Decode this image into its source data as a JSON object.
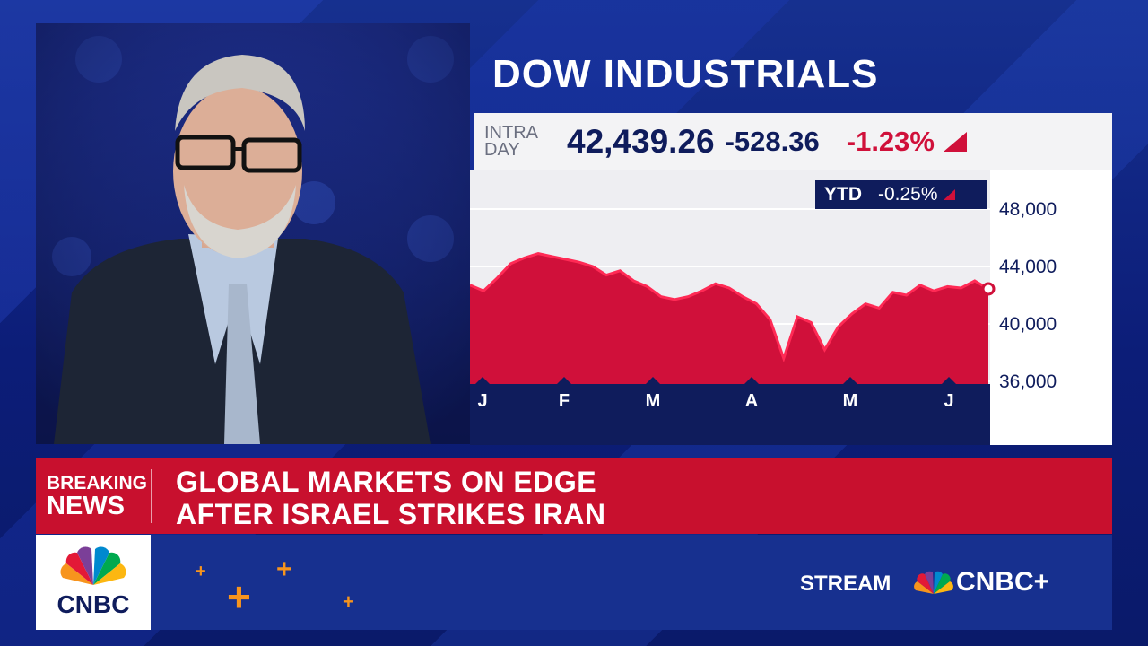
{
  "chart": {
    "title": "DOW INDUSTRIALS",
    "intraday_label_1": "INTRA",
    "intraday_label_2": "DAY",
    "last": "42,439.26",
    "change": "-528.36",
    "change_pct": "-1.23%",
    "ytd_label": "YTD",
    "ytd_value": "-0.25%"
  },
  "chart_data": {
    "type": "area",
    "title": "DOW INDUSTRIALS",
    "x_tick_labels": [
      "J",
      "F",
      "M",
      "A",
      "M",
      "J"
    ],
    "y_tick_labels": [
      "48,000",
      "44,000",
      "40,000",
      "36,000"
    ],
    "y_ticks": [
      48000,
      44000,
      40000,
      36000
    ],
    "ylim": [
      36000,
      48000
    ],
    "series": [
      {
        "values": [
          42700,
          42300,
          43200,
          44200,
          44600,
          44900,
          44700,
          44500,
          44300,
          44000,
          43400,
          43700,
          43000,
          42600,
          41900,
          41700,
          41900,
          42300,
          42800,
          42500,
          41900,
          41400,
          40300,
          37600,
          40500,
          40100,
          38200,
          39800,
          40700,
          41400,
          41100,
          42200,
          42000,
          42700,
          42300,
          42600,
          42500,
          43000,
          42439
        ]
      }
    ],
    "grid": true
  },
  "ticker": {
    "breaking_1": "BREAKING",
    "breaking_2": "NEWS",
    "headline_1": "GLOBAL MARKETS ON EDGE",
    "headline_2": "AFTER ISRAEL STRIKES IRAN"
  },
  "branding": {
    "logo_text": "CNBC",
    "stream_label": "STREAM",
    "cnbc_plus": "CNBC+"
  },
  "colors": {
    "red": "#d0103a",
    "navy": "#0f1c5c",
    "accent_orange": "#f7941d"
  }
}
